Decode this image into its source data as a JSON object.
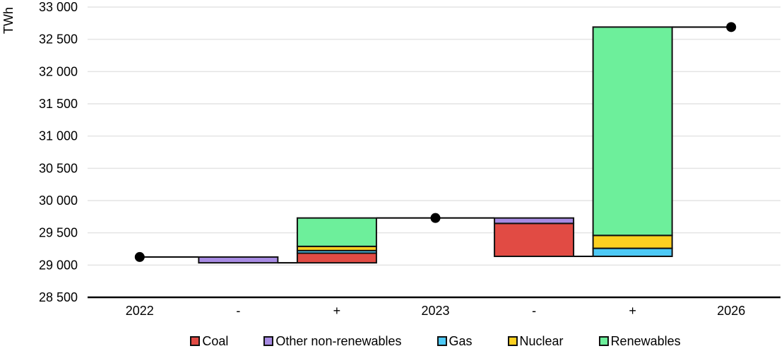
{
  "chart_data": {
    "type": "bar",
    "subtype": "waterfall",
    "ylabel": "TWh",
    "unit": "TWh",
    "ylim": [
      28500,
      33000
    ],
    "ytick_step": 500,
    "grid": true,
    "legend_position": "bottom",
    "yticks": [
      {
        "value": 33000,
        "label": "33 000"
      },
      {
        "value": 32500,
        "label": "32 500"
      },
      {
        "value": 32000,
        "label": "32 000"
      },
      {
        "value": 31500,
        "label": "31 500"
      },
      {
        "value": 31000,
        "label": "31 000"
      },
      {
        "value": 30500,
        "label": "30 500"
      },
      {
        "value": 30000,
        "label": "30 000"
      },
      {
        "value": 29500,
        "label": "29 500"
      },
      {
        "value": 29000,
        "label": "29 000"
      },
      {
        "value": 28500,
        "label": "28 500"
      }
    ],
    "categories": [
      "2022",
      "-",
      "+",
      "2023",
      "-",
      "+",
      "2026"
    ],
    "levels": {
      "2022": 29125,
      "2023": 29730,
      "2026": 32690
    },
    "columns": [
      {
        "category": "2022",
        "kind": "level",
        "value": 29125
      },
      {
        "category": "-",
        "kind": "decrease",
        "segments": [
          {
            "series": "Other non-renewables",
            "value": 90
          }
        ]
      },
      {
        "category": "+",
        "kind": "increase",
        "segments": [
          {
            "series": "Coal",
            "value": 150
          },
          {
            "series": "Gas",
            "value": 40
          },
          {
            "series": "Nuclear",
            "value": 65
          },
          {
            "series": "Renewables",
            "value": 440
          }
        ]
      },
      {
        "category": "2023",
        "kind": "level",
        "value": 29730
      },
      {
        "category": "-",
        "kind": "decrease",
        "segments": [
          {
            "series": "Other non-renewables",
            "value": 85
          },
          {
            "series": "Coal",
            "value": 510
          }
        ]
      },
      {
        "category": "+",
        "kind": "increase",
        "segments": [
          {
            "series": "Gas",
            "value": 125
          },
          {
            "series": "Nuclear",
            "value": 200
          },
          {
            "series": "Renewables",
            "value": 3230
          }
        ]
      },
      {
        "category": "2026",
        "kind": "level",
        "value": 32690
      }
    ],
    "series_colors": {
      "Coal": "#E14B44",
      "Other non-renewables": "#A78BE3",
      "Gas": "#4DC9F6",
      "Nuclear": "#FCD021",
      "Renewables": "#6DEF9B"
    },
    "legend": [
      {
        "label": "Coal",
        "color": "#E14B44"
      },
      {
        "label": "Other non-renewables",
        "color": "#A78BE3"
      },
      {
        "label": "Gas",
        "color": "#4DC9F6"
      },
      {
        "label": "Nuclear",
        "color": "#FCD021"
      },
      {
        "label": "Renewables",
        "color": "#6DEF9B"
      }
    ],
    "style": {
      "gridline_color": "#e4e4e4",
      "axis_color": "#000000",
      "bar_border_color": "#111111",
      "connector_color": "#000000",
      "dot_color": "#000000"
    }
  }
}
